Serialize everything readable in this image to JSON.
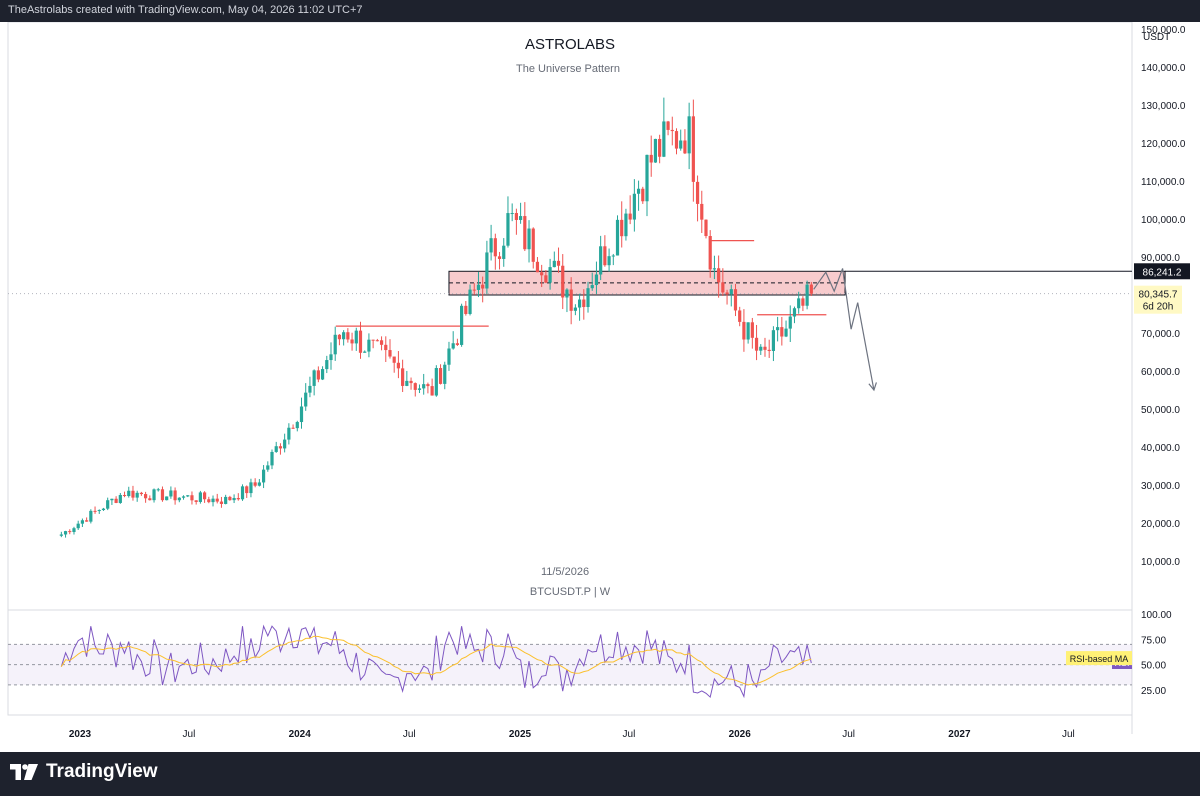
{
  "header": {
    "credit": "TheAstrolabs created with TradingView.com, May 04, 2026 11:02 UTC+7"
  },
  "footer": {
    "brand": "TradingView",
    "logo_icon": "tradingview-logo-icon"
  },
  "chart_data": {
    "type": "candlestick",
    "title": "ASTROLABS",
    "subtitle": "The Universe Pattern",
    "watermark_date": "11/5/2026",
    "symbol": "BTCUSDT.P | W",
    "currency": "USDT",
    "y_axis": {
      "ylim": [
        0,
        155000
      ],
      "ticks": [
        "150,000.0",
        "140,000.0",
        "130,000.0",
        "120,000.0",
        "110,000.0",
        "100,000.0",
        "90,000.0",
        "80,000.0",
        "70,000.0",
        "60,000.0",
        "50,000.0",
        "40,000.0",
        "30,000.0",
        "20,000.0",
        "10,000.0"
      ],
      "tick_values": [
        150000,
        140000,
        130000,
        120000,
        110000,
        100000,
        90000,
        80000,
        70000,
        60000,
        50000,
        40000,
        30000,
        20000,
        10000
      ]
    },
    "x_axis": {
      "ticks": [
        {
          "date": "2023-01-01",
          "label": "2023"
        },
        {
          "date": "2023-07-01",
          "label": "Jul"
        },
        {
          "date": "2024-01-01",
          "label": "2024"
        },
        {
          "date": "2024-07-01",
          "label": "Jul"
        },
        {
          "date": "2025-01-01",
          "label": "2025"
        },
        {
          "date": "2025-07-01",
          "label": "Jul"
        },
        {
          "date": "2026-01-01",
          "label": "2026"
        },
        {
          "date": "2026-07-01",
          "label": "Jul"
        },
        {
          "date": "2027-01-01",
          "label": "2027"
        },
        {
          "date": "2027-07-01",
          "label": "Jul"
        }
      ]
    },
    "price_labels": {
      "high_line": "86,241.2",
      "last_price": "80,345.7",
      "countdown": "6d 20h",
      "high_value": 86241.2,
      "last_value": 80345.7
    },
    "colors": {
      "up": "#26a69a",
      "down": "#ef5350",
      "zone_fill": "#f6c2c4",
      "rsi": "#7e57c2",
      "rsi_ma": "#fbc02d"
    },
    "key_points": [
      {
        "date": "2022-12-01",
        "close": 17000
      },
      {
        "date": "2023-03-15",
        "close": 28000
      },
      {
        "date": "2023-09-01",
        "close": 26000
      },
      {
        "date": "2023-10-20",
        "close": 30000
      },
      {
        "date": "2024-03-15",
        "close": 71000
      },
      {
        "date": "2024-08-05",
        "close": 54000
      },
      {
        "date": "2024-11-15",
        "close": 91000
      },
      {
        "date": "2024-12-15",
        "close": 100000
      },
      {
        "date": "2025-04-07",
        "close": 78000
      },
      {
        "date": "2025-08-15",
        "close": 118000
      },
      {
        "date": "2025-10-06",
        "close": 124000
      },
      {
        "date": "2025-11-20",
        "close": 86000
      },
      {
        "date": "2026-02-06",
        "close": 63000
      },
      {
        "date": "2026-05-04",
        "close": 80345.7
      }
    ],
    "annotations": {
      "zone": {
        "from": "2024-09-05",
        "to": "2026-06-25",
        "high": 86241.2,
        "low": 80000,
        "mid": 83200
      },
      "resistance_2024": {
        "from": "2024-03-01",
        "to": "2024-11-10",
        "value": 71800
      },
      "resistance_2025": {
        "from": "2025-11-15",
        "to": "2026-01-25",
        "value": 94300
      },
      "support_2026": {
        "from": "2026-01-30",
        "to": "2026-05-25",
        "value": 74800
      },
      "projection": [
        {
          "date": "2026-05-04",
          "value": 81500
        },
        {
          "date": "2026-05-24",
          "value": 86000
        },
        {
          "date": "2026-06-07",
          "value": 81000
        },
        {
          "date": "2026-06-21",
          "value": 87000
        },
        {
          "date": "2026-07-05",
          "value": 71000
        },
        {
          "date": "2026-07-16",
          "value": 78000
        },
        {
          "date": "2026-08-12",
          "value": 55000
        }
      ]
    },
    "rsi": {
      "ticks": [
        "100.00",
        "75.00",
        "50.00",
        "25.00"
      ],
      "tick_values": [
        100,
        75,
        50,
        25
      ],
      "upper": 70,
      "middle": 50,
      "lower": 30,
      "labels": {
        "rsi": "RSI",
        "ma": "RSI-based MA"
      }
    }
  }
}
